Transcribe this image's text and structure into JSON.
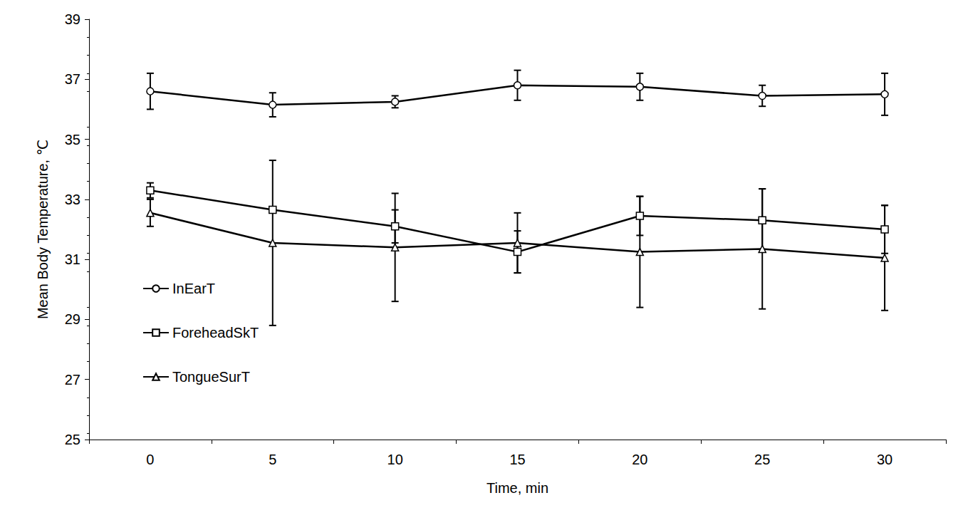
{
  "chart_data": {
    "type": "line",
    "x_label": "Time, min",
    "y_label": "Mean Body Temperature, ℃",
    "categories": [
      "0",
      "5",
      "10",
      "15",
      "20",
      "25",
      "30"
    ],
    "ylim": [
      25,
      39
    ],
    "yticks": [
      25,
      27,
      29,
      31,
      33,
      35,
      37,
      39
    ],
    "grid": false,
    "legend": "left",
    "series": [
      {
        "name": "InEarT",
        "color": "#000000",
        "marker": "circle",
        "values": [
          36.6,
          36.15,
          36.25,
          36.8,
          36.75,
          36.45,
          36.5
        ],
        "errors": [
          0.6,
          0.4,
          0.2,
          0.5,
          0.45,
          0.35,
          0.7
        ]
      },
      {
        "name": "ForeheadSkT",
        "color": "#000000",
        "marker": "square",
        "values": [
          33.3,
          32.65,
          32.1,
          31.25,
          32.45,
          32.3,
          32.0
        ],
        "errors": [
          0.25,
          0.1,
          0.55,
          0.7,
          0.65,
          1.05,
          0.8
        ]
      },
      {
        "name": "TongueSurT",
        "color": "#000000",
        "marker": "triangle",
        "values": [
          32.55,
          31.55,
          31.4,
          31.55,
          31.25,
          31.35,
          31.05
        ],
        "errors": [
          0.45,
          2.75,
          1.8,
          1.0,
          1.85,
          2.0,
          1.75
        ]
      }
    ]
  }
}
